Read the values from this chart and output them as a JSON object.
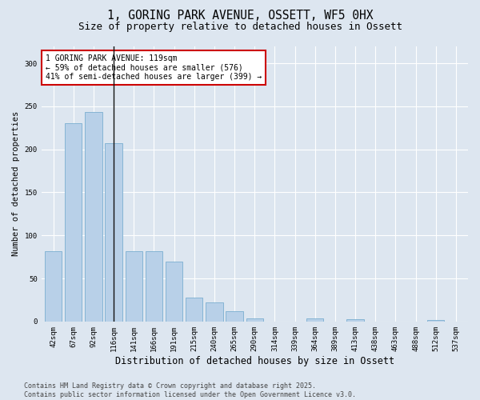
{
  "title1": "1, GORING PARK AVENUE, OSSETT, WF5 0HX",
  "title2": "Size of property relative to detached houses in Ossett",
  "xlabel": "Distribution of detached houses by size in Ossett",
  "ylabel": "Number of detached properties",
  "categories": [
    "42sqm",
    "67sqm",
    "92sqm",
    "116sqm",
    "141sqm",
    "166sqm",
    "191sqm",
    "215sqm",
    "240sqm",
    "265sqm",
    "290sqm",
    "314sqm",
    "339sqm",
    "364sqm",
    "389sqm",
    "413sqm",
    "438sqm",
    "463sqm",
    "488sqm",
    "512sqm",
    "537sqm"
  ],
  "values": [
    82,
    230,
    243,
    207,
    82,
    82,
    70,
    28,
    22,
    12,
    4,
    0,
    0,
    4,
    0,
    3,
    0,
    0,
    0,
    2,
    0
  ],
  "bar_color": "#b8d0e8",
  "bar_edge_color": "#7aaed0",
  "marker_bar_index": 3,
  "marker_color": "#111111",
  "annotation_text": "1 GORING PARK AVENUE: 119sqm\n← 59% of detached houses are smaller (576)\n41% of semi-detached houses are larger (399) →",
  "annotation_box_color": "#ffffff",
  "annotation_border_color": "#cc0000",
  "ylim": [
    0,
    320
  ],
  "yticks": [
    0,
    50,
    100,
    150,
    200,
    250,
    300
  ],
  "background_color": "#dde6f0",
  "plot_bg_color": "#dde6f0",
  "footer_text": "Contains HM Land Registry data © Crown copyright and database right 2025.\nContains public sector information licensed under the Open Government Licence v3.0.",
  "title1_fontsize": 10.5,
  "title2_fontsize": 9,
  "xlabel_fontsize": 8.5,
  "ylabel_fontsize": 7.5,
  "tick_fontsize": 6.5,
  "annotation_fontsize": 7,
  "footer_fontsize": 6
}
